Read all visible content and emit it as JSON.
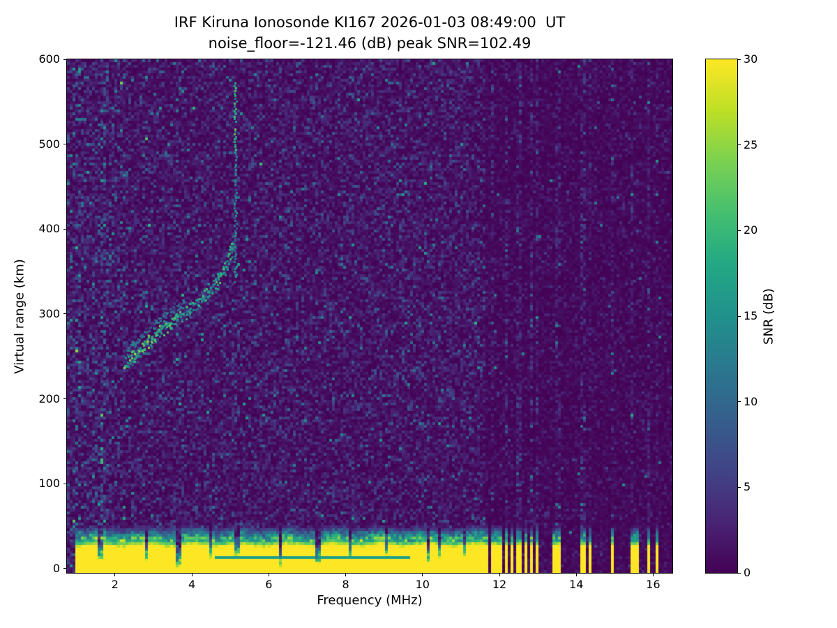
{
  "chart_data": {
    "type": "heatmap",
    "title": "IRF Kiruna Ionosonde KI167 2026-01-03 08:49:00  UT",
    "subtitle": "noise_floor=-121.46 (dB) peak SNR=102.49",
    "station": "KI167",
    "timestamp": "2026-01-03 08:49:00 UT",
    "noise_floor_db": -121.46,
    "peak_snr_db": 102.49,
    "xlabel": "Frequency (MHz)",
    "ylabel": "Virtual range (km)",
    "colorbar_label": "SNR (dB)",
    "xlim": [
      0.75,
      16.5
    ],
    "ylim": [
      -5,
      600
    ],
    "zlim": [
      0,
      30
    ],
    "xticks": [
      2,
      4,
      6,
      8,
      10,
      12,
      14,
      16
    ],
    "yticks": [
      0,
      100,
      200,
      300,
      400,
      500,
      600
    ],
    "colorbar_ticks": [
      0,
      5,
      10,
      15,
      20,
      25,
      30
    ],
    "colormap": "viridis",
    "colormap_stops": [
      [
        0.0,
        "#440154"
      ],
      [
        0.1,
        "#482475"
      ],
      [
        0.2,
        "#414487"
      ],
      [
        0.3,
        "#355f8d"
      ],
      [
        0.4,
        "#2a788e"
      ],
      [
        0.5,
        "#21918c"
      ],
      [
        0.6,
        "#22a884"
      ],
      [
        0.7,
        "#44bf70"
      ],
      [
        0.8,
        "#7ad151"
      ],
      [
        0.9,
        "#bddf26"
      ],
      [
        1.0,
        "#fde725"
      ]
    ],
    "noise": {
      "seed": 42,
      "mean_left": 2.1,
      "mean_right": 0.9,
      "hot_chance": 0.004
    },
    "rfi_stripes": [
      {
        "f": 1.05,
        "w": 0.05,
        "boost": 0.8
      },
      {
        "f": 1.7,
        "w": 0.05,
        "boost": 1.2
      },
      {
        "f": 3.65,
        "w": 0.05,
        "boost": 0.6
      },
      {
        "f": 6.3,
        "w": 0.05,
        "boost": 0.5
      },
      {
        "f": 11.84,
        "w": 0.05,
        "boost": 1.4
      },
      {
        "f": 12.17,
        "w": 0.05,
        "boost": 1.1
      },
      {
        "f": 12.5,
        "w": 0.05,
        "boost": 1.3
      },
      {
        "f": 12.84,
        "w": 0.05,
        "boost": 1.0
      },
      {
        "f": 12.99,
        "w": 0.05,
        "boost": 1.2
      },
      {
        "f": 13.47,
        "w": 0.05,
        "boost": 1.0
      },
      {
        "f": 13.58,
        "w": 0.05,
        "boost": 0.8
      },
      {
        "f": 14.17,
        "w": 0.05,
        "boost": 1.1
      },
      {
        "f": 14.37,
        "w": 0.05,
        "boost": 0.7
      },
      {
        "f": 14.93,
        "w": 0.05,
        "boost": 1.0
      },
      {
        "f": 15.47,
        "w": 0.05,
        "boost": 0.9
      },
      {
        "f": 15.88,
        "w": 0.05,
        "boost": 1.1
      },
      {
        "f": 16.08,
        "w": 0.05,
        "boost": 0.8
      }
    ],
    "ground_clutter": {
      "f_start": 1.0,
      "f_end": 11.62,
      "top": 27,
      "inner_line": {
        "v": 14,
        "f_start": 4.6,
        "f_end": 9.7,
        "snr": 17
      },
      "notches": [
        {
          "f": 1.62,
          "w": 0.04,
          "top": 10
        },
        {
          "f": 2.85,
          "w": 0.04,
          "top": 9
        },
        {
          "f": 3.65,
          "w": 0.04,
          "top": 2
        },
        {
          "f": 4.52,
          "w": 0.04,
          "top": 13
        },
        {
          "f": 5.18,
          "w": 0.04,
          "top": 15
        },
        {
          "f": 6.3,
          "w": 0.04,
          "top": 2
        },
        {
          "f": 7.28,
          "w": 0.04,
          "top": 6
        },
        {
          "f": 8.12,
          "w": 0.04,
          "top": 13
        },
        {
          "f": 9.05,
          "w": 0.04,
          "top": 16
        },
        {
          "f": 10.15,
          "w": 0.04,
          "top": 7
        },
        {
          "f": 10.45,
          "w": 0.04,
          "top": 12
        },
        {
          "f": 11.1,
          "w": 0.04,
          "top": 14
        }
      ],
      "sparse_columns": [
        {
          "f": 11.68,
          "w": 0.055
        },
        {
          "f": 11.84,
          "w": 0.055
        },
        {
          "f": 12.0,
          "w": 0.055
        },
        {
          "f": 12.17,
          "w": 0.055
        },
        {
          "f": 12.34,
          "w": 0.055
        },
        {
          "f": 12.5,
          "w": 0.055
        },
        {
          "f": 12.68,
          "w": 0.055
        },
        {
          "f": 12.84,
          "w": 0.055
        },
        {
          "f": 12.99,
          "w": 0.055
        },
        {
          "f": 13.47,
          "w": 0.055
        },
        {
          "f": 13.58,
          "w": 0.045
        },
        {
          "f": 14.17,
          "w": 0.055
        },
        {
          "f": 14.37,
          "w": 0.045
        },
        {
          "f": 14.93,
          "w": 0.055
        },
        {
          "f": 15.47,
          "w": 0.055
        },
        {
          "f": 15.57,
          "w": 0.045
        },
        {
          "f": 15.88,
          "w": 0.05
        },
        {
          "f": 16.08,
          "w": 0.045
        }
      ]
    },
    "echo_trace": {
      "seed": 7,
      "dots_per_point": 9,
      "secondary_max_f": 3.8,
      "secondary_offset": 14,
      "points": [
        [
          2.3,
          242
        ],
        [
          2.4,
          246
        ],
        [
          2.5,
          250
        ],
        [
          2.6,
          254
        ],
        [
          2.7,
          259
        ],
        [
          2.8,
          264
        ],
        [
          2.9,
          269
        ],
        [
          3.0,
          273
        ],
        [
          3.1,
          277
        ],
        [
          3.2,
          281
        ],
        [
          3.3,
          285
        ],
        [
          3.4,
          288
        ],
        [
          3.5,
          291
        ],
        [
          3.6,
          294
        ],
        [
          3.7,
          297
        ],
        [
          3.8,
          300
        ],
        [
          3.9,
          303
        ],
        [
          4.0,
          307
        ],
        [
          4.1,
          311
        ],
        [
          4.2,
          315
        ],
        [
          4.3,
          319
        ],
        [
          4.4,
          324
        ],
        [
          4.5,
          329
        ],
        [
          4.6,
          335
        ],
        [
          4.7,
          342
        ],
        [
          4.8,
          350
        ],
        [
          4.9,
          359
        ],
        [
          5.0,
          370
        ],
        [
          5.05,
          379
        ]
      ],
      "cusp": {
        "f": 5.13,
        "v_from": 338,
        "v_to": 572,
        "bright_above": 490
      }
    }
  }
}
